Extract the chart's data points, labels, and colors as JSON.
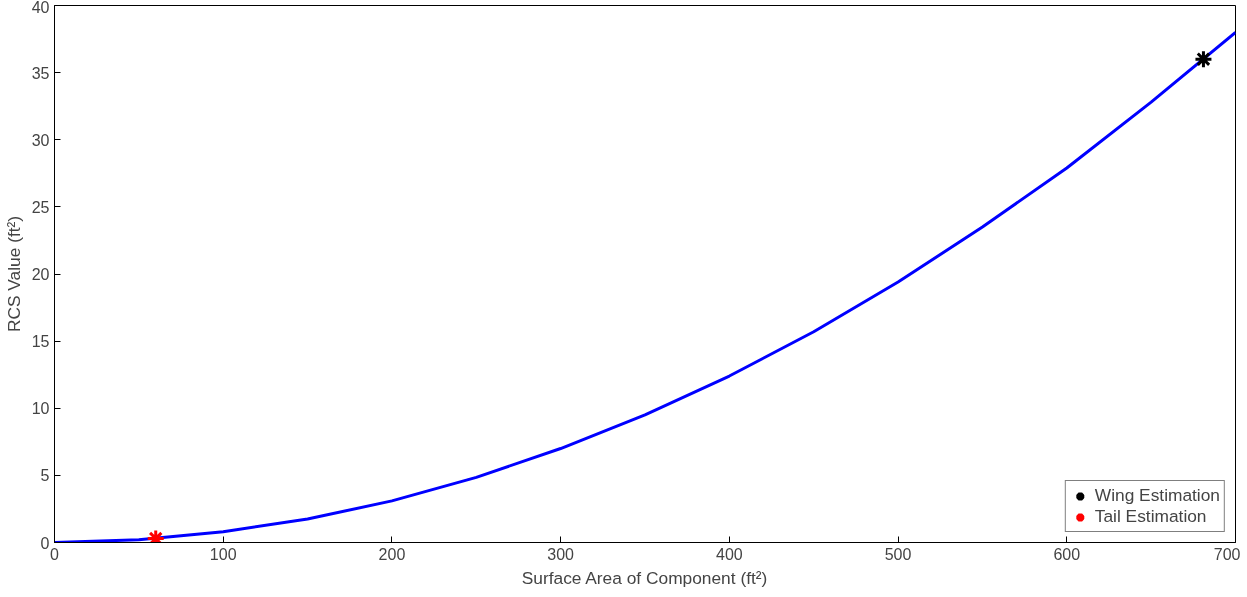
{
  "chart_data": {
    "type": "line",
    "xlabel": "Surface Area of Component (ft²)",
    "ylabel": "RCS Value (ft²)",
    "xlim": [
      0,
      700
    ],
    "ylim": [
      0,
      40
    ],
    "xticks": [
      0,
      100,
      200,
      300,
      400,
      500,
      600,
      700
    ],
    "yticks": [
      0,
      5,
      10,
      15,
      20,
      25,
      30,
      35,
      40
    ],
    "grid": false,
    "legend": "bottom right",
    "series": [
      {
        "color": "#0000ff",
        "marker": "none",
        "x": [
          0,
          50,
          100,
          150,
          200,
          250,
          300,
          350,
          400,
          450,
          500,
          550,
          600,
          650,
          700
        ],
        "values": [
          0,
          0.2,
          0.8,
          1.75,
          3.1,
          4.85,
          7.0,
          9.5,
          12.4,
          15.7,
          19.4,
          23.5,
          27.9,
          32.8,
          38.0
        ]
      },
      {
        "type": "scatter",
        "name": "Wing Estimation",
        "color": "#000000",
        "marker": "cross",
        "x": [
          681
        ],
        "values": [
          36
        ]
      },
      {
        "type": "scatter",
        "name": "Tail Estimation",
        "color": "#ff0000",
        "marker": "cross",
        "x": [
          60
        ],
        "values": [
          0.3
        ]
      }
    ]
  }
}
